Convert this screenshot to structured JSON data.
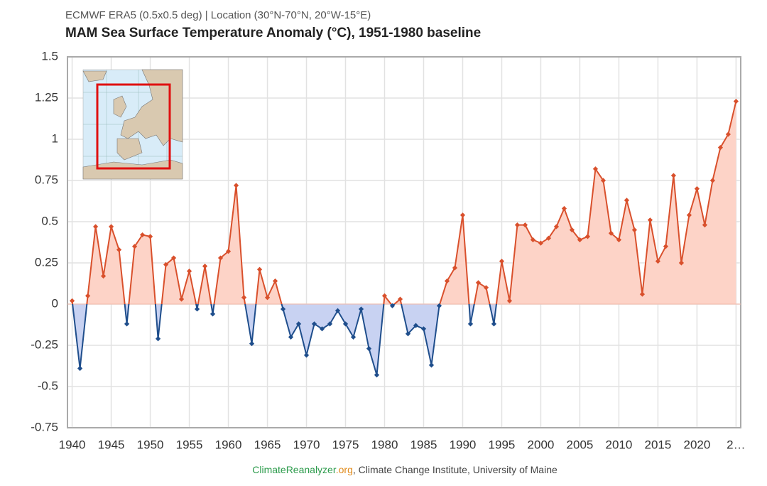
{
  "chart_data": {
    "type": "area",
    "subtitle": "ECMWF ERA5 (0.5x0.5 deg) | Location (30°N-70°N, 20°W-15°E)",
    "title": "MAM Sea Surface Temperature Anomaly (°C), 1951-1980 baseline",
    "source": [
      "ClimateReanalyzer",
      ".org",
      ", Climate Change Institute, University of Maine"
    ],
    "x": [
      1940,
      1941,
      1942,
      1943,
      1944,
      1945,
      1946,
      1947,
      1948,
      1949,
      1950,
      1951,
      1952,
      1953,
      1954,
      1955,
      1956,
      1957,
      1958,
      1959,
      1960,
      1961,
      1962,
      1963,
      1964,
      1965,
      1966,
      1967,
      1968,
      1969,
      1970,
      1971,
      1972,
      1973,
      1974,
      1975,
      1976,
      1977,
      1978,
      1979,
      1980,
      1981,
      1982,
      1983,
      1984,
      1985,
      1986,
      1987,
      1988,
      1989,
      1990,
      1991,
      1992,
      1993,
      1994,
      1995,
      1996,
      1997,
      1998,
      1999,
      2000,
      2001,
      2002,
      2003,
      2004,
      2005,
      2006,
      2007,
      2008,
      2009,
      2010,
      2011,
      2012,
      2013,
      2014,
      2015,
      2016,
      2017,
      2018,
      2019,
      2020,
      2021,
      2022,
      2023,
      2024,
      2025
    ],
    "values": [
      0.02,
      -0.39,
      0.05,
      0.47,
      0.17,
      0.47,
      0.33,
      -0.12,
      0.35,
      0.42,
      0.41,
      -0.21,
      0.24,
      0.28,
      0.03,
      0.2,
      -0.03,
      0.23,
      -0.06,
      0.28,
      0.32,
      0.72,
      0.04,
      -0.24,
      0.21,
      0.04,
      0.14,
      -0.03,
      -0.2,
      -0.12,
      -0.31,
      -0.12,
      -0.15,
      -0.12,
      -0.04,
      -0.12,
      -0.2,
      -0.03,
      -0.27,
      -0.43,
      0.05,
      -0.01,
      0.03,
      -0.18,
      -0.13,
      -0.15,
      -0.37,
      -0.01,
      0.14,
      0.22,
      0.54,
      -0.12,
      0.13,
      0.1,
      -0.12,
      0.26,
      0.02,
      0.48,
      0.48,
      0.39,
      0.37,
      0.4,
      0.47,
      0.58,
      0.45,
      0.39,
      0.41,
      0.82,
      0.75,
      0.43,
      0.39,
      0.63,
      0.45,
      0.06,
      0.51,
      0.26,
      0.35,
      0.78,
      0.25,
      0.54,
      0.7,
      0.48,
      0.75,
      0.95,
      1.03,
      1.23
    ],
    "positive_color": "#d9502c",
    "positive_fill": "#fdd3c7",
    "negative_color": "#1f4e8c",
    "negative_fill": "#c8d2f2",
    "xlim": [
      1939.4,
      2025.6
    ],
    "xticks": [
      1940,
      1945,
      1950,
      1955,
      1960,
      1965,
      1970,
      1975,
      1980,
      1985,
      1990,
      1995,
      2000,
      2005,
      2010,
      2015,
      2020,
      {
        "value": 2025,
        "label": "2…"
      }
    ],
    "ylim": [
      -0.75,
      1.5
    ],
    "yticks": [
      {
        "value": -0.75,
        "label": "-0.75"
      },
      {
        "value": -0.5,
        "label": "-0.5"
      },
      {
        "value": -0.25,
        "label": "-0.25"
      },
      0,
      0.25,
      0.5,
      0.75,
      1,
      1.25,
      1.5
    ],
    "grid": true
  }
}
